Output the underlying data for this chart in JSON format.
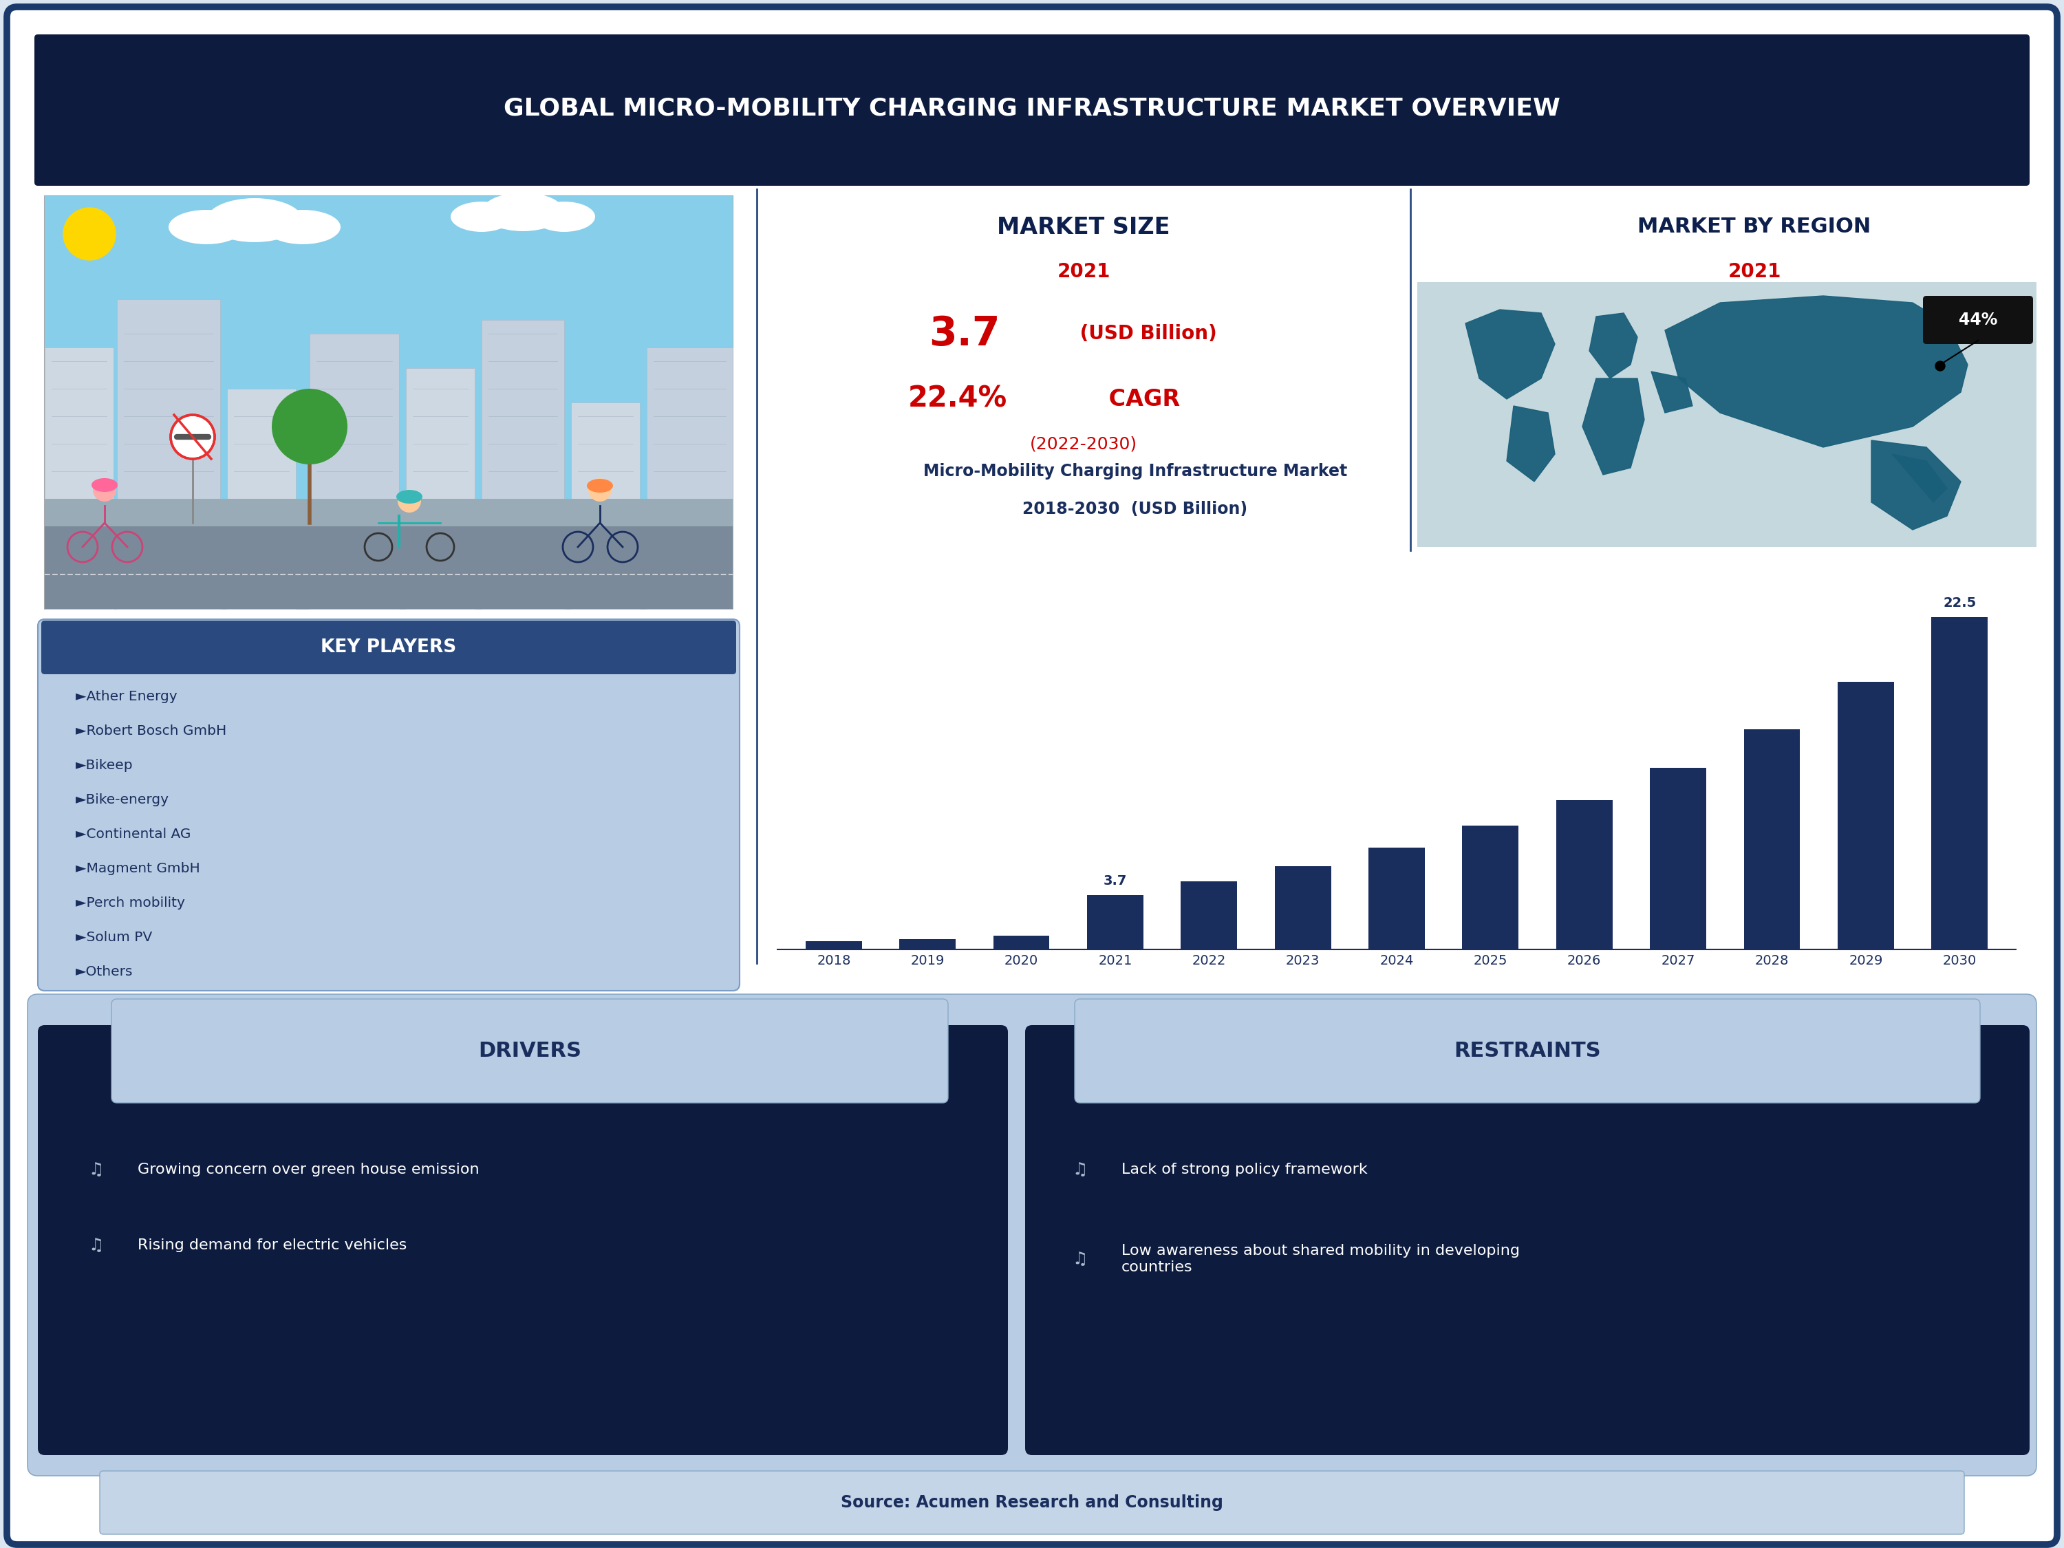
{
  "title": "GLOBAL MICRO-MOBILITY CHARGING INFRASTRUCTURE MARKET OVERVIEW",
  "title_bg": "#0d1b3e",
  "title_color": "#ffffff",
  "outer_border_color": "#1a3a6b",
  "bg_color": "#dce6f0",
  "market_size_label": "MARKET SIZE",
  "market_size_year": "2021",
  "market_size_value": "3.7",
  "market_size_unit": " (USD Billion)",
  "market_cagr": "22.4%",
  "market_cagr_label": " CAGR",
  "market_cagr_years": "(2022-2030)",
  "market_size_color": "#cc0000",
  "market_label_color": "#0d1f4c",
  "market_region_label": "MARKET BY REGION",
  "market_region_year": "2021",
  "market_region_pct": "44%",
  "chart_title_line1": "Micro-Mobility Charging Infrastructure Market",
  "chart_title_line2": "2018-2030  (USD Billion)",
  "bar_years": [
    "2018",
    "2019",
    "2020",
    "2021",
    "2022",
    "2023",
    "2024",
    "2025",
    "2026",
    "2027",
    "2028",
    "2029",
    "2030"
  ],
  "bar_values": [
    0.55,
    0.72,
    0.95,
    3.7,
    4.6,
    5.65,
    6.9,
    8.4,
    10.1,
    12.3,
    14.9,
    18.1,
    22.5
  ],
  "bar_color": "#1a2e5e",
  "bar_label_2021": "3.7",
  "bar_label_2030": "22.5",
  "key_players_title": "KEY PLAYERS",
  "key_players_title_bg": "#2a4a7f",
  "key_players_bg": "#b8cce4",
  "key_players": [
    "►Ather Energy",
    "►Robert Bosch GmbH",
    "►Bikeep",
    "►Bike-energy",
    "►Continental AG",
    "►Magment GmbH",
    "►Perch mobility",
    "►Solum PV",
    "►Others"
  ],
  "drivers_title": "DRIVERS",
  "drivers_bg": "#b8cce4",
  "drivers_content_bg": "#0d1b3e",
  "drivers_title_color": "#1a2e5e",
  "drivers": [
    "Growing concern over green house emission",
    "Rising demand for electric vehicles"
  ],
  "restraints_title": "RESTRAINTS",
  "restraints_bg": "#b8cce4",
  "restraints_content_bg": "#0d1b3e",
  "restraints_title_color": "#1a2e5e",
  "restraints": [
    "Lack of strong policy framework",
    "Low awareness about shared mobility in developing\ncountries"
  ],
  "source_text": "Source: Acumen Research and Consulting",
  "source_bg": "#c5d5e8",
  "divider_color": "#2a4a7f",
  "text_dark": "#1a2e5e",
  "text_medium": "#2a4a7f",
  "white": "#ffffff"
}
